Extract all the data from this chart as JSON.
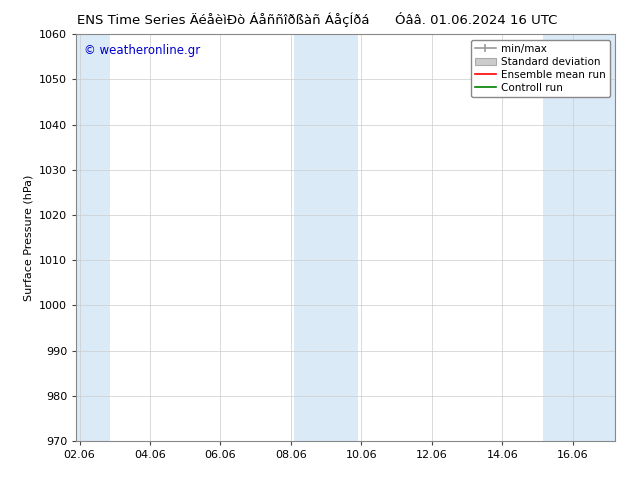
{
  "title1": "ENS Time Series ÄéåèìÐò Áåññîðßàñ ÁåçÍðá",
  "title2": "Óââ. 01.06.2024 16 UTC",
  "ylabel": "Surface Pressure (hPa)",
  "ylim": [
    970,
    1060
  ],
  "yticks": [
    970,
    980,
    990,
    1000,
    1010,
    1020,
    1030,
    1040,
    1050,
    1060
  ],
  "xtick_labels": [
    "02.06",
    "04.06",
    "06.06",
    "08.06",
    "10.06",
    "12.06",
    "14.06",
    "16.06"
  ],
  "xtick_positions": [
    0,
    2,
    4,
    6,
    8,
    10,
    12,
    14
  ],
  "xlim": [
    -0.1,
    15.2
  ],
  "shaded_bands": [
    {
      "x_start": -0.1,
      "x_end": 0.85,
      "color": "#daeaf7"
    },
    {
      "x_start": 6.1,
      "x_end": 7.0,
      "color": "#daeaf7"
    },
    {
      "x_start": 7.0,
      "x_end": 7.9,
      "color": "#daeaf7"
    },
    {
      "x_start": 13.15,
      "x_end": 14.05,
      "color": "#daeaf7"
    },
    {
      "x_start": 14.05,
      "x_end": 15.2,
      "color": "#daeaf7"
    }
  ],
  "watermark": "© weatheronline.gr",
  "watermark_color": "#0000cc",
  "background_color": "#ffffff",
  "legend_labels": [
    "min/max",
    "Standard deviation",
    "Ensemble mean run",
    "Controll run"
  ],
  "legend_colors_line": [
    "#999999",
    "#bbbbbb",
    "#ff0000",
    "#008000"
  ],
  "grid_color": "#cccccc",
  "spine_color": "#888888",
  "tick_color": "#444444"
}
